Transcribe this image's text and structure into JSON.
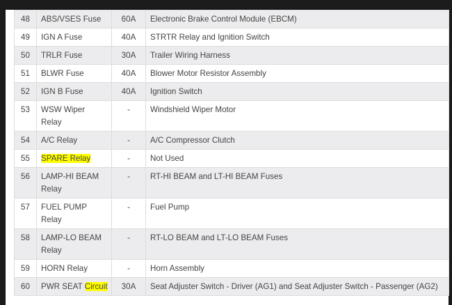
{
  "rows": [
    {
      "num": "48",
      "name": "ABS/VSES Fuse",
      "amp": "60A",
      "desc": "Electronic Brake Control Module (EBCM)"
    },
    {
      "num": "49",
      "name": "IGN A Fuse",
      "amp": "40A",
      "desc": "STRTR Relay and Ignition Switch"
    },
    {
      "num": "50",
      "name": "TRLR Fuse",
      "amp": "30A",
      "desc": "Trailer Wiring Harness"
    },
    {
      "num": "51",
      "name": "BLWR Fuse",
      "amp": "40A",
      "desc": "Blower Motor Resistor Assembly"
    },
    {
      "num": "52",
      "name": "IGN B Fuse",
      "amp": "40A",
      "desc": "Ignition Switch"
    },
    {
      "num": "53",
      "name": "WSW Wiper Relay",
      "amp": "-",
      "desc": "Windshield Wiper Motor"
    },
    {
      "num": "54",
      "name": "A/C Relay",
      "amp": "-",
      "desc": "A/C Compressor Clutch"
    },
    {
      "num": "55",
      "name": "SPARE Relay",
      "amp": "-",
      "desc": "Not Used"
    },
    {
      "num": "56",
      "name": "LAMP-HI BEAM Relay",
      "amp": "-",
      "desc": "RT-HI BEAM and LT-HI BEAM Fuses"
    },
    {
      "num": "57",
      "name": "FUEL PUMP Relay",
      "amp": "-",
      "desc": "Fuel Pump"
    },
    {
      "num": "58",
      "name": "LAMP-LO BEAM Relay",
      "amp": "-",
      "desc": "RT-LO BEAM and LT-LO BEAM Fuses"
    },
    {
      "num": "59",
      "name": "HORN Relay",
      "amp": "-",
      "desc": "Horn Assembly"
    },
    {
      "num": "60",
      "name_plain": "PWR SEAT ",
      "name_highlight": "Circuit",
      "amp": "30A",
      "desc": "Seat Adjuster Switch - Driver (AG1) and Seat Adjuster Switch - Passenger (AG2)"
    }
  ],
  "highlight_color": "#ffff00"
}
